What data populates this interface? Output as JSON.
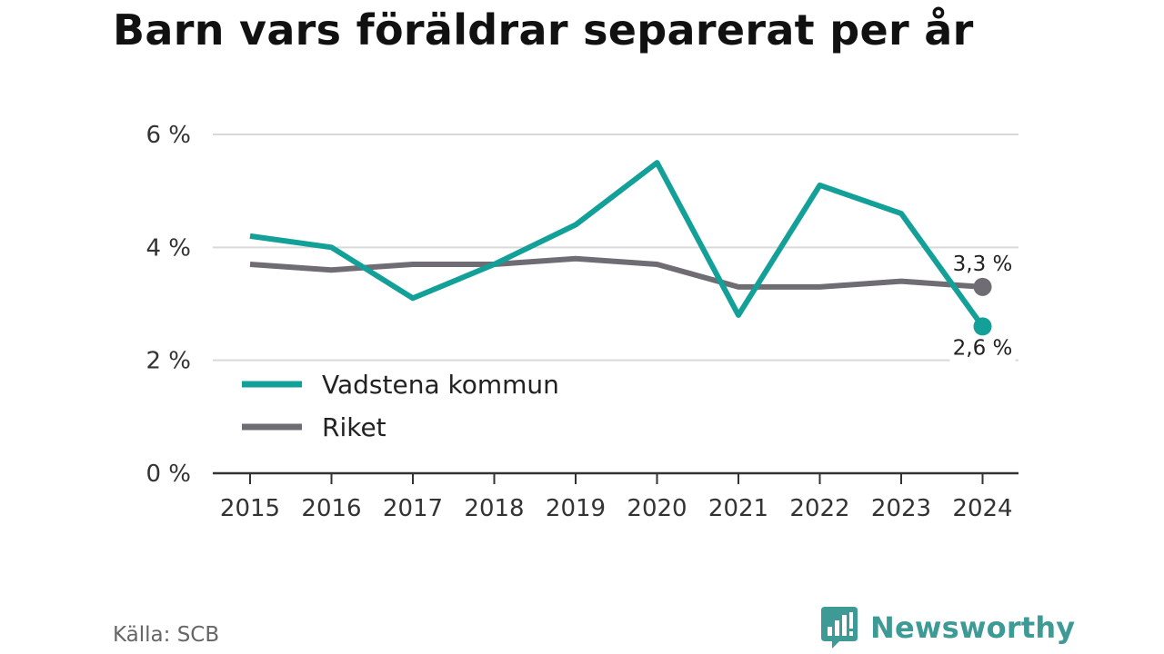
{
  "chart_data": {
    "type": "line",
    "title": "Barn vars föräldrar separerat per år",
    "categories": [
      "2015",
      "2016",
      "2017",
      "2018",
      "2019",
      "2020",
      "2021",
      "2022",
      "2023",
      "2024"
    ],
    "series": [
      {
        "name": "Vadstena kommun",
        "color": "#13a098",
        "values": [
          4.2,
          4.0,
          3.1,
          3.7,
          4.4,
          5.5,
          2.8,
          5.1,
          4.6,
          2.6
        ]
      },
      {
        "name": "Riket",
        "color": "#6f6d73",
        "values": [
          3.7,
          3.6,
          3.7,
          3.7,
          3.8,
          3.7,
          3.3,
          3.3,
          3.4,
          3.3
        ]
      }
    ],
    "end_labels": {
      "Riket": "3,3 %",
      "Vadstena kommun": "2,6 %"
    },
    "yticks": [
      0,
      2,
      4,
      6
    ],
    "ytick_labels": [
      "0 %",
      "2 %",
      "4 %",
      "6 %"
    ],
    "ylim": [
      0,
      6
    ],
    "grid": true,
    "legend_position": "lower-left",
    "source": "Källa: SCB"
  },
  "brand": {
    "name": "Newsworthy",
    "color": "#3e9a94"
  }
}
